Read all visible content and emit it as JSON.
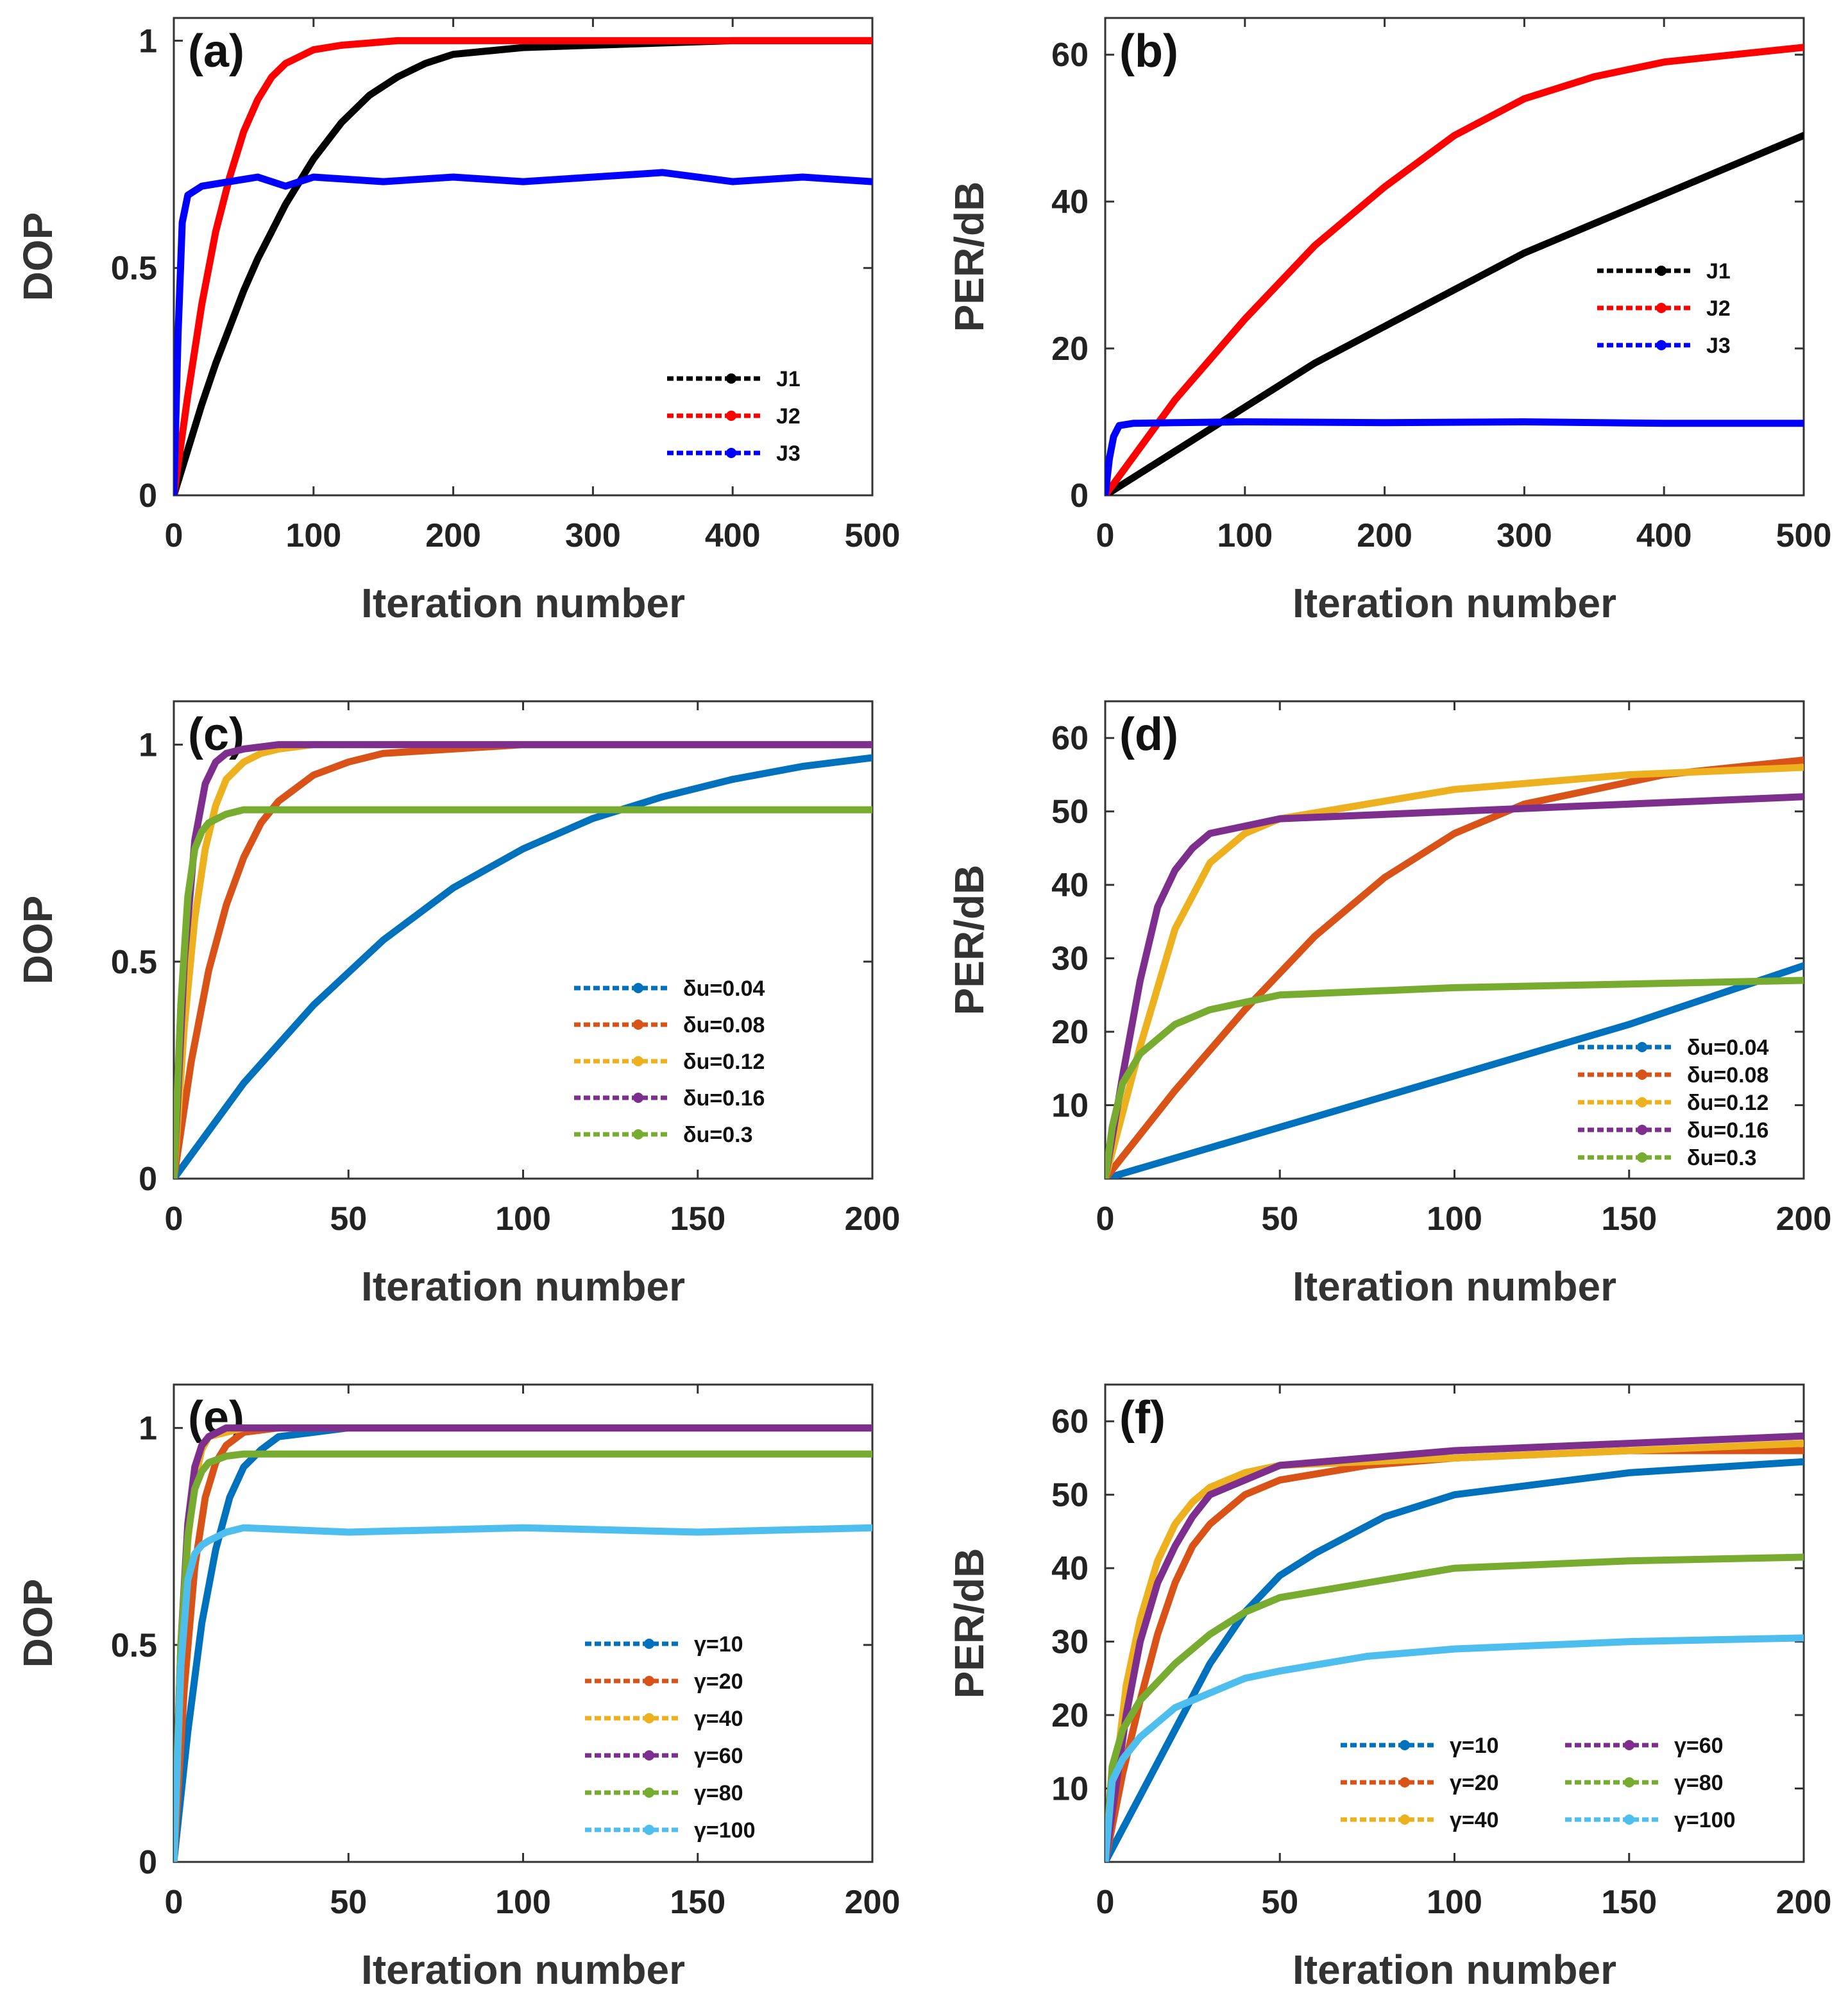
{
  "chart_data": [
    {
      "type": "line",
      "panel_label": "(a)",
      "xlabel": "Iteration number",
      "ylabel": "DOP",
      "xlim": [
        0,
        500
      ],
      "ylim": [
        0,
        1.05
      ],
      "xticks": [
        "0",
        "100",
        "200",
        "300",
        "400",
        "500"
      ],
      "xtick_values": [
        0,
        100,
        200,
        300,
        400,
        500
      ],
      "yticks": [
        "0",
        "0.5",
        "1"
      ],
      "ytick_values": [
        0,
        0.5,
        1
      ],
      "legend_position": "bottom-right",
      "series": [
        {
          "name": "J1",
          "color": "#000000",
          "x": [
            0,
            10,
            20,
            30,
            40,
            50,
            60,
            70,
            80,
            90,
            100,
            120,
            140,
            160,
            180,
            200,
            250,
            300,
            400,
            500
          ],
          "y": [
            0,
            0.1,
            0.2,
            0.29,
            0.37,
            0.45,
            0.52,
            0.58,
            0.64,
            0.69,
            0.74,
            0.82,
            0.88,
            0.92,
            0.95,
            0.97,
            0.985,
            0.99,
            1.0,
            1.0
          ]
        },
        {
          "name": "J2",
          "color": "#ff0000",
          "x": [
            0,
            10,
            20,
            30,
            40,
            50,
            60,
            70,
            80,
            100,
            120,
            140,
            160,
            200,
            300,
            500
          ],
          "y": [
            0,
            0.22,
            0.42,
            0.58,
            0.7,
            0.8,
            0.87,
            0.92,
            0.95,
            0.98,
            0.99,
            0.995,
            1.0,
            1.0,
            1.0,
            1.0
          ]
        },
        {
          "name": "J3",
          "color": "#0000ff",
          "x": [
            0,
            3,
            6,
            10,
            20,
            40,
            60,
            80,
            100,
            150,
            200,
            250,
            300,
            350,
            400,
            450,
            500
          ],
          "y": [
            0,
            0.35,
            0.6,
            0.66,
            0.68,
            0.69,
            0.7,
            0.68,
            0.7,
            0.69,
            0.7,
            0.69,
            0.7,
            0.71,
            0.69,
            0.7,
            0.69
          ]
        }
      ]
    },
    {
      "type": "line",
      "panel_label": "(b)",
      "xlabel": "Iteration number",
      "ylabel": "PER/dB",
      "xlim": [
        0,
        500
      ],
      "ylim": [
        0,
        65
      ],
      "xticks": [
        "0",
        "100",
        "200",
        "300",
        "400",
        "500"
      ],
      "xtick_values": [
        0,
        100,
        200,
        300,
        400,
        500
      ],
      "yticks": [
        "0",
        "20",
        "40",
        "60"
      ],
      "ytick_values": [
        0,
        20,
        40,
        60
      ],
      "legend_position": "top-right",
      "series": [
        {
          "name": "J1",
          "color": "#000000",
          "x": [
            0,
            50,
            100,
            150,
            200,
            250,
            300,
            350,
            400,
            450,
            500
          ],
          "y": [
            0,
            6,
            12,
            18,
            23,
            28,
            33,
            37,
            41,
            45,
            49
          ]
        },
        {
          "name": "J2",
          "color": "#ff0000",
          "x": [
            0,
            50,
            100,
            150,
            200,
            250,
            300,
            350,
            400,
            450,
            500
          ],
          "y": [
            0,
            13,
            24,
            34,
            42,
            49,
            54,
            57,
            59,
            60,
            61
          ]
        },
        {
          "name": "J3",
          "color": "#0000ff",
          "x": [
            0,
            3,
            6,
            10,
            20,
            50,
            100,
            200,
            300,
            400,
            500
          ],
          "y": [
            0,
            5,
            8,
            9.5,
            9.8,
            9.9,
            10,
            9.9,
            10,
            9.8,
            9.8
          ]
        }
      ]
    },
    {
      "type": "line",
      "panel_label": "(c)",
      "xlabel": "Iteration number",
      "ylabel": "DOP",
      "xlim": [
        0,
        200
      ],
      "ylim": [
        0,
        1.1
      ],
      "xticks": [
        "0",
        "50",
        "100",
        "150",
        "200"
      ],
      "xtick_values": [
        0,
        50,
        100,
        150,
        200
      ],
      "yticks": [
        "0",
        "0.5",
        "1"
      ],
      "ytick_values": [
        0,
        0.5,
        1
      ],
      "legend_position": "bottom-right",
      "series": [
        {
          "name": "δu=0.04",
          "color": "#0072bd",
          "x": [
            0,
            20,
            40,
            60,
            80,
            100,
            120,
            140,
            160,
            180,
            200
          ],
          "y": [
            0,
            0.22,
            0.4,
            0.55,
            0.67,
            0.76,
            0.83,
            0.88,
            0.92,
            0.95,
            0.97
          ]
        },
        {
          "name": "δu=0.08",
          "color": "#d95319",
          "x": [
            0,
            5,
            10,
            15,
            20,
            25,
            30,
            40,
            50,
            60,
            80,
            100,
            200
          ],
          "y": [
            0,
            0.27,
            0.48,
            0.63,
            0.74,
            0.82,
            0.87,
            0.93,
            0.96,
            0.98,
            0.99,
            1.0,
            1.0
          ]
        },
        {
          "name": "δu=0.12",
          "color": "#edb120",
          "x": [
            0,
            3,
            6,
            9,
            12,
            15,
            20,
            25,
            30,
            40,
            50,
            200
          ],
          "y": [
            0,
            0.35,
            0.6,
            0.76,
            0.86,
            0.92,
            0.96,
            0.98,
            0.99,
            1.0,
            1.0,
            1.0
          ]
        },
        {
          "name": "δu=0.16",
          "color": "#7e2f8e",
          "x": [
            0,
            3,
            6,
            9,
            12,
            15,
            20,
            30,
            200
          ],
          "y": [
            0,
            0.5,
            0.78,
            0.91,
            0.96,
            0.98,
            0.99,
            1.0,
            1.0
          ]
        },
        {
          "name": "δu=0.3",
          "color": "#77ac30",
          "x": [
            0,
            2,
            4,
            6,
            8,
            10,
            15,
            20,
            50,
            100,
            150,
            200
          ],
          "y": [
            0,
            0.4,
            0.65,
            0.76,
            0.8,
            0.82,
            0.84,
            0.85,
            0.85,
            0.85,
            0.85,
            0.85
          ]
        }
      ]
    },
    {
      "type": "line",
      "panel_label": "(d)",
      "xlabel": "Iteration number",
      "ylabel": "PER/dB",
      "xlim": [
        0,
        200
      ],
      "ylim": [
        0,
        65
      ],
      "xticks": [
        "0",
        "50",
        "100",
        "150",
        "200"
      ],
      "xtick_values": [
        0,
        50,
        100,
        150,
        200
      ],
      "yticks": [
        "10",
        "20",
        "30",
        "40",
        "50",
        "60"
      ],
      "ytick_values": [
        10,
        20,
        30,
        40,
        50,
        60
      ],
      "legend_position": "bottom-right",
      "series": [
        {
          "name": "δu=0.04",
          "color": "#0072bd",
          "x": [
            0,
            50,
            100,
            150,
            200
          ],
          "y": [
            0,
            7,
            14,
            21,
            29
          ]
        },
        {
          "name": "δu=0.08",
          "color": "#d95319",
          "x": [
            0,
            20,
            40,
            60,
            80,
            100,
            120,
            140,
            160,
            180,
            200
          ],
          "y": [
            0,
            12,
            23,
            33,
            41,
            47,
            51,
            53,
            55,
            56,
            57
          ]
        },
        {
          "name": "δu=0.12",
          "color": "#edb120",
          "x": [
            0,
            10,
            20,
            30,
            40,
            50,
            75,
            100,
            150,
            200
          ],
          "y": [
            0,
            18,
            34,
            43,
            47,
            49,
            51,
            53,
            55,
            56
          ]
        },
        {
          "name": "δu=0.16",
          "color": "#7e2f8e",
          "x": [
            0,
            5,
            10,
            15,
            20,
            25,
            30,
            40,
            50,
            100,
            150,
            200
          ],
          "y": [
            0,
            14,
            27,
            37,
            42,
            45,
            47,
            48,
            49,
            50,
            51,
            52
          ]
        },
        {
          "name": "δu=0.3",
          "color": "#77ac30",
          "x": [
            0,
            2,
            5,
            10,
            20,
            30,
            50,
            100,
            150,
            200
          ],
          "y": [
            0,
            7,
            13,
            17,
            21,
            23,
            25,
            26,
            26.5,
            27
          ]
        }
      ]
    },
    {
      "type": "line",
      "panel_label": "(e)",
      "xlabel": "Iteration number",
      "ylabel": "DOP",
      "xlim": [
        0,
        200
      ],
      "ylim": [
        0,
        1.1
      ],
      "xticks": [
        "0",
        "50",
        "100",
        "150",
        "200"
      ],
      "xtick_values": [
        0,
        50,
        100,
        150,
        200
      ],
      "yticks": [
        "0",
        "0.5",
        "1"
      ],
      "ytick_values": [
        0,
        0.5,
        1
      ],
      "legend_position": "bottom-right",
      "series": [
        {
          "name": "γ=10",
          "color": "#0072bd",
          "x": [
            0,
            4,
            8,
            12,
            16,
            20,
            25,
            30,
            40,
            50,
            200
          ],
          "y": [
            0,
            0.3,
            0.55,
            0.72,
            0.84,
            0.91,
            0.95,
            0.98,
            0.99,
            1.0,
            1.0
          ]
        },
        {
          "name": "γ=20",
          "color": "#d95319",
          "x": [
            0,
            3,
            6,
            9,
            12,
            15,
            20,
            30,
            200
          ],
          "y": [
            0,
            0.4,
            0.68,
            0.84,
            0.92,
            0.96,
            0.99,
            1.0,
            1.0
          ]
        },
        {
          "name": "γ=40",
          "color": "#edb120",
          "x": [
            0,
            2,
            4,
            6,
            8,
            10,
            15,
            20,
            200
          ],
          "y": [
            0,
            0.45,
            0.74,
            0.88,
            0.95,
            0.98,
            0.99,
            1.0,
            1.0
          ]
        },
        {
          "name": "γ=60",
          "color": "#7e2f8e",
          "x": [
            0,
            2,
            4,
            6,
            8,
            10,
            15,
            200
          ],
          "y": [
            0,
            0.5,
            0.78,
            0.91,
            0.96,
            0.98,
            1.0,
            1.0
          ]
        },
        {
          "name": "γ=80",
          "color": "#77ac30",
          "x": [
            0,
            2,
            4,
            6,
            8,
            10,
            15,
            20,
            50,
            100,
            150,
            200
          ],
          "y": [
            0,
            0.5,
            0.75,
            0.86,
            0.9,
            0.92,
            0.935,
            0.94,
            0.94,
            0.94,
            0.94,
            0.94
          ]
        },
        {
          "name": "γ=100",
          "color": "#4dbeee",
          "x": [
            0,
            2,
            4,
            6,
            8,
            10,
            15,
            20,
            50,
            100,
            150,
            200
          ],
          "y": [
            0,
            0.45,
            0.65,
            0.71,
            0.73,
            0.74,
            0.76,
            0.77,
            0.76,
            0.77,
            0.76,
            0.77
          ]
        }
      ]
    },
    {
      "type": "line",
      "panel_label": "(f)",
      "xlabel": "Iteration number",
      "ylabel": "PER/dB",
      "xlim": [
        0,
        200
      ],
      "ylim": [
        0,
        65
      ],
      "xticks": [
        "0",
        "50",
        "100",
        "150",
        "200"
      ],
      "xtick_values": [
        0,
        50,
        100,
        150,
        200
      ],
      "yticks": [
        "10",
        "20",
        "30",
        "40",
        "50",
        "60"
      ],
      "ytick_values": [
        10,
        20,
        30,
        40,
        50,
        60
      ],
      "legend_position": "bottom-right",
      "legend_columns": 2,
      "series": [
        {
          "name": "γ=10",
          "color": "#0072bd",
          "x": [
            0,
            10,
            20,
            30,
            40,
            50,
            60,
            80,
            100,
            150,
            200
          ],
          "y": [
            0,
            9,
            18,
            27,
            34,
            39,
            42,
            47,
            50,
            53,
            54.5
          ]
        },
        {
          "name": "γ=20",
          "color": "#d95319",
          "x": [
            0,
            5,
            10,
            15,
            20,
            25,
            30,
            40,
            50,
            75,
            100,
            150,
            200
          ],
          "y": [
            0,
            12,
            22,
            31,
            38,
            43,
            46,
            50,
            52,
            54,
            55,
            56,
            56
          ]
        },
        {
          "name": "γ=40",
          "color": "#edb120",
          "x": [
            0,
            3,
            6,
            10,
            15,
            20,
            25,
            30,
            40,
            50,
            100,
            150,
            200
          ],
          "y": [
            0,
            12,
            24,
            33,
            41,
            46,
            49,
            51,
            53,
            54,
            55,
            56,
            57
          ]
        },
        {
          "name": "γ=60",
          "color": "#7e2f8e",
          "x": [
            0,
            3,
            6,
            10,
            15,
            20,
            25,
            30,
            40,
            50,
            100,
            150,
            200
          ],
          "y": [
            0,
            10,
            20,
            30,
            38,
            43,
            47,
            50,
            52,
            54,
            56,
            57,
            58
          ]
        },
        {
          "name": "γ=80",
          "color": "#77ac30",
          "x": [
            0,
            2,
            5,
            10,
            20,
            30,
            40,
            50,
            75,
            100,
            150,
            200
          ],
          "y": [
            0,
            13,
            18,
            22,
            27,
            31,
            34,
            36,
            38,
            40,
            41,
            41.5
          ]
        },
        {
          "name": "γ=100",
          "color": "#4dbeee",
          "x": [
            0,
            2,
            5,
            10,
            20,
            30,
            40,
            50,
            75,
            100,
            150,
            200
          ],
          "y": [
            0,
            11,
            14,
            17,
            21,
            23,
            25,
            26,
            28,
            29,
            30,
            30.5
          ]
        }
      ]
    }
  ]
}
